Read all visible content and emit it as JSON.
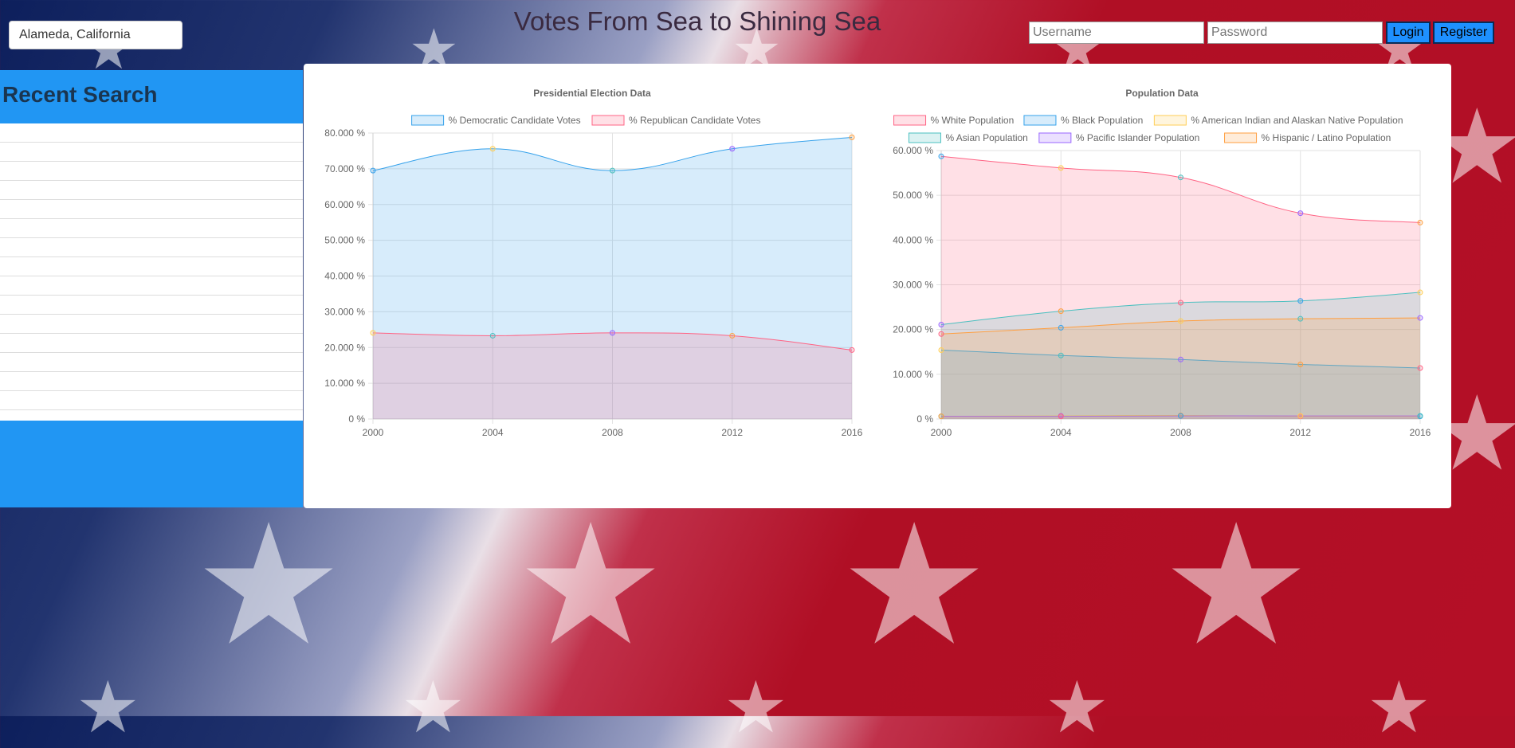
{
  "header": {
    "title": "Votes From Sea to Shining Sea",
    "search_value": "Alameda, California",
    "username_placeholder": "Username",
    "password_placeholder": "Password",
    "login_label": "Login",
    "register_label": "Register"
  },
  "recent": {
    "title": "Recent Search",
    "rows": 15
  },
  "colors": {
    "panel_blue": "#2196f3",
    "button_blue": "#1e90ff"
  },
  "chart_data": [
    {
      "type": "area",
      "title": "Presidential Election Data",
      "x": [
        "2000",
        "2004",
        "2008",
        "2012",
        "2016"
      ],
      "ylim": [
        0,
        80
      ],
      "ytick_step": 10,
      "grid": true,
      "legend": "top",
      "series": [
        {
          "name": "% Democratic Candidate Votes",
          "values": [
            69.5,
            75.6,
            69.5,
            75.6,
            78.8
          ],
          "color": "#36a2eb"
        },
        {
          "name": "% Republican Candidate Votes",
          "values": [
            24.1,
            23.3,
            24.1,
            23.3,
            19.3
          ],
          "color": "#ff6384"
        }
      ]
    },
    {
      "type": "area",
      "title": "Population Data",
      "x": [
        "2000",
        "2004",
        "2008",
        "2012",
        "2016"
      ],
      "ylim": [
        0,
        60
      ],
      "ytick_step": 10,
      "grid": true,
      "legend": "top",
      "series": [
        {
          "name": "% White Population",
          "values": [
            58.7,
            56.1,
            54.0,
            46.0,
            43.9
          ],
          "color": "#ff6384"
        },
        {
          "name": "% Black Population",
          "values": [
            15.4,
            14.2,
            13.3,
            12.2,
            11.4
          ],
          "color": "#36a2eb"
        },
        {
          "name": "% American Indian and Alaskan Native Population",
          "values": [
            0.6,
            0.7,
            0.8,
            0.6,
            0.6
          ],
          "color": "#ffce56"
        },
        {
          "name": "% Asian Population",
          "values": [
            21.1,
            24.1,
            26.0,
            26.4,
            28.3
          ],
          "color": "#4bc0c0"
        },
        {
          "name": "% Pacific Islander Population",
          "values": [
            0.6,
            0.6,
            0.7,
            0.7,
            0.7
          ],
          "color": "#9966ff"
        },
        {
          "name": "% Hispanic / Latino Population",
          "values": [
            19.0,
            20.4,
            21.9,
            22.4,
            22.6
          ],
          "color": "#ff9f40"
        }
      ]
    }
  ]
}
